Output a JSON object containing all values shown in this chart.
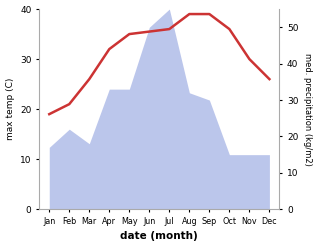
{
  "months": [
    "Jan",
    "Feb",
    "Mar",
    "Apr",
    "May",
    "Jun",
    "Jul",
    "Aug",
    "Sep",
    "Oct",
    "Nov",
    "Dec"
  ],
  "month_indices": [
    1,
    2,
    3,
    4,
    5,
    6,
    7,
    8,
    9,
    10,
    11,
    12
  ],
  "max_temp": [
    19,
    21,
    26,
    32,
    35,
    35.5,
    36,
    39,
    39,
    36,
    30,
    26
  ],
  "precipitation_mm": [
    17,
    22,
    18,
    33,
    33,
    50,
    55,
    32,
    30,
    15,
    15,
    15
  ],
  "temp_ylim": [
    0,
    40
  ],
  "precip_ylim": [
    0,
    55
  ],
  "temp_yticks": [
    0,
    10,
    20,
    30,
    40
  ],
  "precip_yticks": [
    0,
    10,
    20,
    30,
    40,
    50
  ],
  "xlabel": "date (month)",
  "ylabel_left": "max temp (C)",
  "ylabel_right": "med. precipitation (kg/m2)",
  "fill_color": "#b0bce8",
  "line_color": "#cc3333",
  "line_width": 1.8,
  "background_color": "#ffffff"
}
